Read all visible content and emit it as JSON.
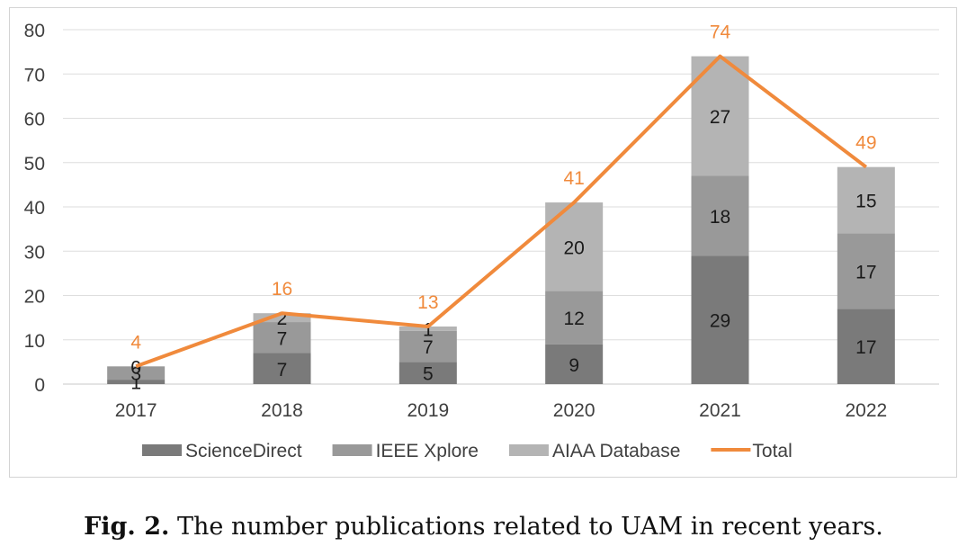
{
  "chart_data": {
    "type": "bar",
    "stacked": true,
    "categories": [
      "2017",
      "2018",
      "2019",
      "2020",
      "2021",
      "2022"
    ],
    "series": [
      {
        "name": "ScienceDirect",
        "values": [
          1,
          7,
          5,
          9,
          29,
          17
        ],
        "color": "#7a7a7a"
      },
      {
        "name": "IEEE Xplore",
        "values": [
          3,
          7,
          7,
          12,
          18,
          17
        ],
        "color": "#999999"
      },
      {
        "name": "AIAA Database",
        "values": [
          0,
          2,
          1,
          20,
          27,
          15
        ],
        "color": "#b4b4b4"
      }
    ],
    "line_series": {
      "name": "Total",
      "values": [
        4,
        16,
        13,
        41,
        74,
        49
      ],
      "color": "#f08a3c"
    },
    "y_ticks": [
      "0",
      "10",
      "20",
      "30",
      "40",
      "50",
      "60",
      "70",
      "80"
    ],
    "ylim": [
      0,
      80
    ],
    "grid": true,
    "legend_position": "bottom"
  },
  "caption": {
    "label": "Fig. 2.",
    "text": "The number publications related to UAM in recent years."
  }
}
